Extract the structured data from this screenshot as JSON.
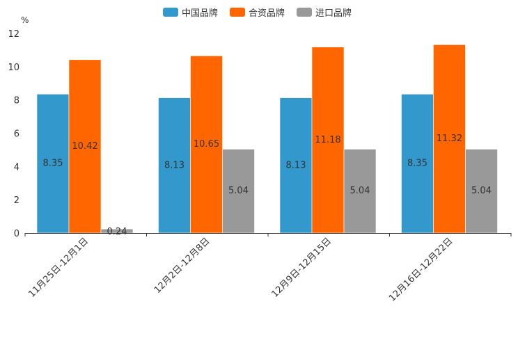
{
  "chart_data": {
    "type": "bar",
    "title": "",
    "xlabel": "",
    "ylabel": "%",
    "ylim": [
      0,
      12
    ],
    "yticks": [
      0,
      2,
      4,
      6,
      8,
      10,
      12
    ],
    "categories": [
      "11月25日-12月1日",
      "12月2日-12月8日",
      "12月9日-12月15日",
      "12月16日-12月22日"
    ],
    "series": [
      {
        "name": "中国品牌",
        "color": "#3399cc",
        "values": [
          8.35,
          8.13,
          8.13,
          8.35
        ],
        "labels": [
          "8.35",
          "8.13",
          "8.13",
          "8.35"
        ]
      },
      {
        "name": "合资品牌",
        "color": "#ff6600",
        "values": [
          10.42,
          10.65,
          11.18,
          11.32
        ],
        "labels": [
          "10.42",
          "10.65",
          "11.18",
          "11.32"
        ]
      },
      {
        "name": "进口品牌",
        "color": "#999999",
        "values": [
          0.24,
          5.04,
          5.04,
          5.04
        ],
        "labels": [
          "0.24",
          "5.04",
          "5.04",
          "5.04"
        ]
      }
    ],
    "legend_position": "top-center",
    "grid": false
  }
}
